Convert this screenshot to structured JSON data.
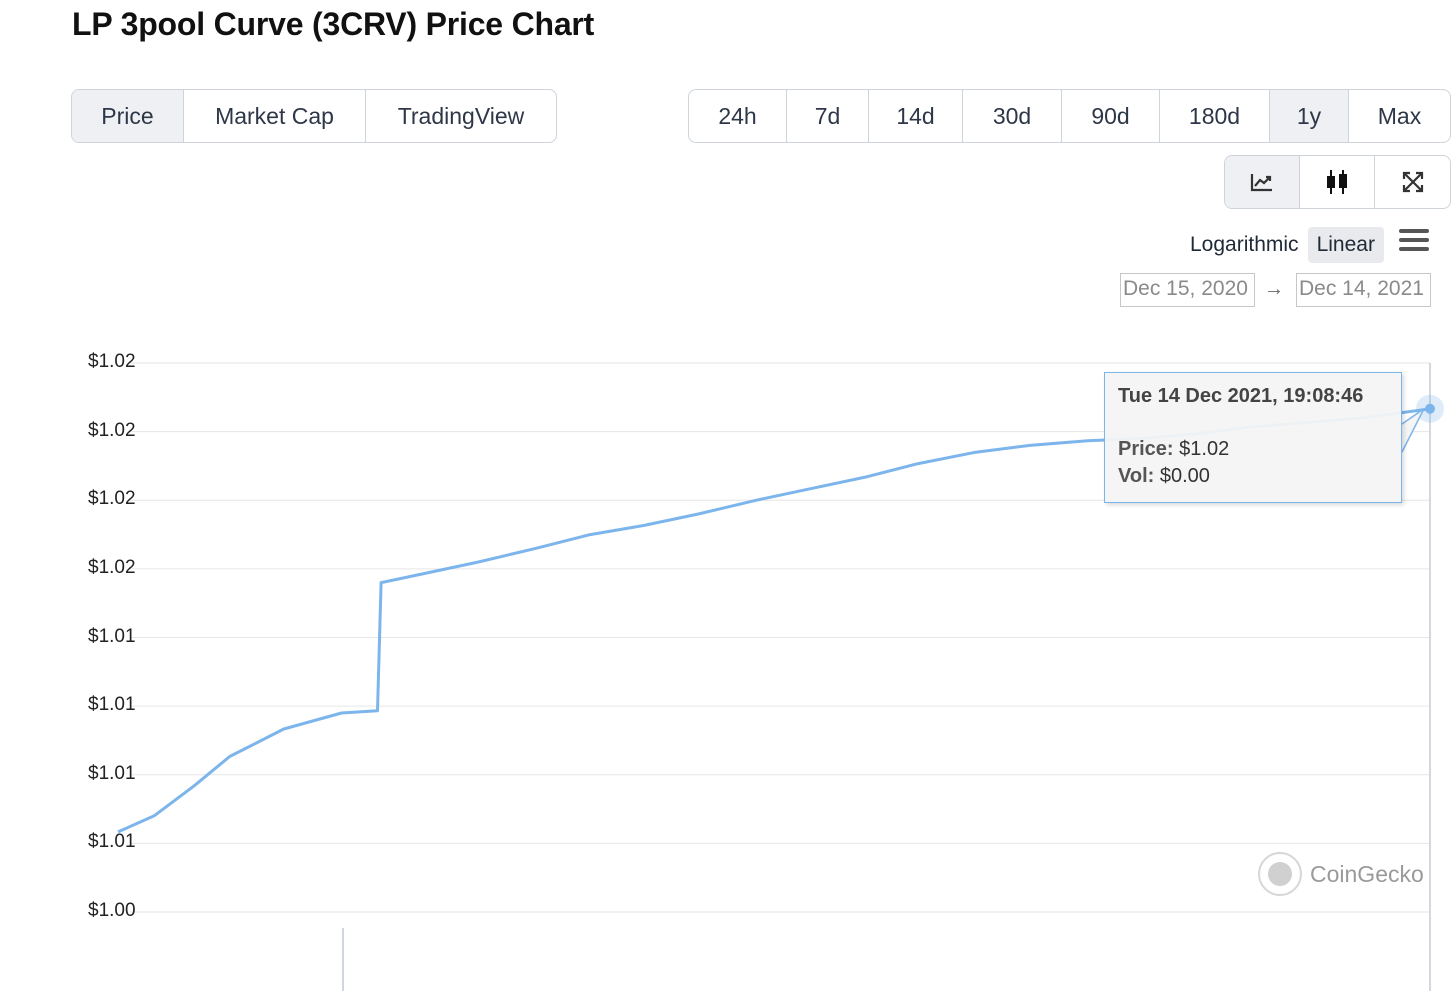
{
  "page": {
    "title": "LP 3pool Curve (3CRV) Price Chart"
  },
  "view_tabs": [
    {
      "label": "Price",
      "active": true
    },
    {
      "label": "Market Cap",
      "active": false
    },
    {
      "label": "TradingView",
      "active": false
    }
  ],
  "range_tabs": [
    {
      "label": "24h",
      "active": false
    },
    {
      "label": "7d",
      "active": false
    },
    {
      "label": "14d",
      "active": false
    },
    {
      "label": "30d",
      "active": false
    },
    {
      "label": "90d",
      "active": false
    },
    {
      "label": "180d",
      "active": false
    },
    {
      "label": "1y",
      "active": true
    },
    {
      "label": "Max",
      "active": false
    }
  ],
  "chart_type_icons": [
    "line-chart-icon",
    "candlestick-icon",
    "fullscreen-icon"
  ],
  "scale": {
    "log_label": "Logarithmic",
    "linear_label": "Linear",
    "active": "Linear"
  },
  "date_range": {
    "from": "Dec 15, 2020",
    "to": "Dec 14, 2021",
    "arrow": "→"
  },
  "tooltip": {
    "date": "Tue 14 Dec 2021, 19:08:46",
    "price_label": "Price:",
    "price_value": "$1.02",
    "vol_label": "Vol:",
    "vol_value": "$0.00"
  },
  "brand": {
    "name": "CoinGecko"
  },
  "colors": {
    "line": "#7cb5ec",
    "grid": "#e6e6e6",
    "active_tab": "#eef0f3"
  },
  "chart_data": {
    "type": "line",
    "title": "",
    "xlabel": "",
    "ylabel": "",
    "ytick_labels": [
      "$1.02",
      "$1.02",
      "$1.02",
      "$1.02",
      "$1.01",
      "$1.01",
      "$1.01",
      "$1.01",
      "$1.00"
    ],
    "ylim": [
      1.0,
      1.024
    ],
    "xlim": [
      "2020-12-15",
      "2021-12-14"
    ],
    "grid": true,
    "series": [
      {
        "x": [
          "2020-12-15",
          "2020-12-25",
          "2021-01-05",
          "2021-01-15",
          "2021-01-30",
          "2021-02-15",
          "2021-02-25",
          "2021-02-26",
          "2021-03-10",
          "2021-03-25",
          "2021-04-10",
          "2021-04-25",
          "2021-05-10",
          "2021-05-25",
          "2021-06-10",
          "2021-06-25",
          "2021-07-10",
          "2021-07-25",
          "2021-08-10",
          "2021-08-25",
          "2021-09-10",
          "2021-09-25",
          "2021-10-10",
          "2021-10-25",
          "2021-11-10",
          "2021-11-25",
          "2021-12-05",
          "2021-12-14"
        ],
        "values": [
          1.0035,
          1.0042,
          1.0055,
          1.0068,
          1.008,
          1.0087,
          1.0088,
          1.0144,
          1.0148,
          1.0153,
          1.0159,
          1.0165,
          1.0169,
          1.0174,
          1.018,
          1.0185,
          1.019,
          1.0196,
          1.0201,
          1.0204,
          1.0206,
          1.0207,
          1.0209,
          1.0212,
          1.0214,
          1.0216,
          1.0218,
          1.022
        ]
      }
    ]
  }
}
